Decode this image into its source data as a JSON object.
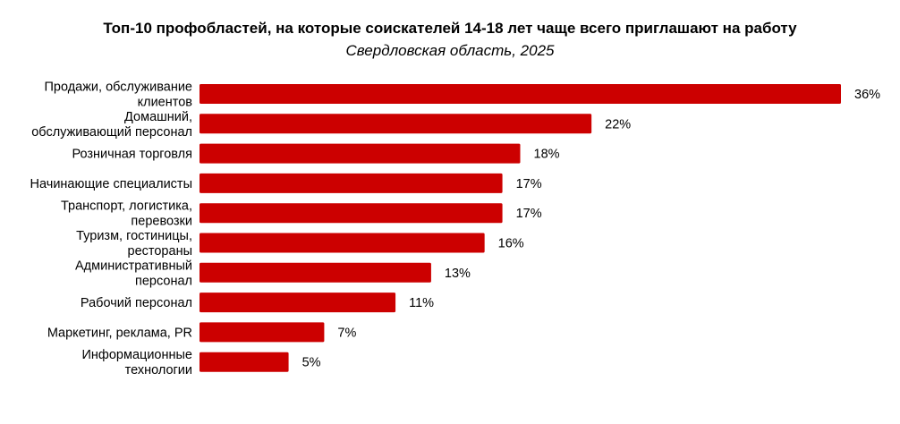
{
  "chart_data": {
    "type": "bar",
    "orientation": "horizontal",
    "title": "Топ-10 профобластей, на которые соискателей 14-18 лет чаще всего приглашают на работу",
    "subtitle": "Свердловская область, 2025",
    "categories": [
      "Продажи, обслуживание\nклиентов",
      "Домашний,\nобслуживающий персонал",
      "Розничная торговля",
      "Начинающие специалисты",
      "Транспорт, логистика,\nперевозки",
      "Туризм, гостиницы,\nрестораны",
      "Административный\nперсонал",
      "Рабочий персонал",
      "Маркетинг, реклама, PR",
      "Информационные\nтехнологии"
    ],
    "values": [
      36,
      22,
      18,
      17,
      17,
      16,
      13,
      11,
      7,
      5
    ],
    "data_labels": [
      "36%",
      "22%",
      "18%",
      "17%",
      "17%",
      "16%",
      "13%",
      "11%",
      "7%",
      "5%"
    ],
    "xlim": [
      0,
      36
    ],
    "grid": false,
    "legend": "none",
    "bar_color": "#cc0000"
  }
}
